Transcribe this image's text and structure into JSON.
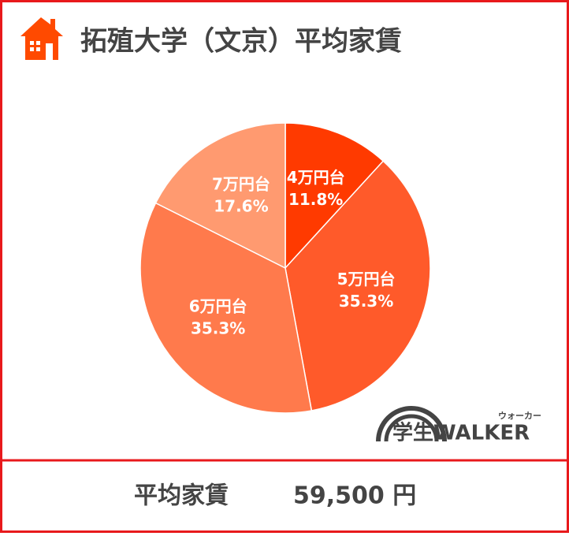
{
  "chart_data": {
    "type": "pie",
    "title": "拓殖大学（文京）平均家賃",
    "categories": [
      "4万円台",
      "5万円台",
      "6万円台",
      "7万円台"
    ],
    "values": [
      11.8,
      35.3,
      35.3,
      17.6
    ],
    "value_labels": [
      "11.8%",
      "35.3%",
      "35.3%",
      "17.6%"
    ],
    "colors": [
      "#ff3a00",
      "#ff5a2a",
      "#ff7a4c",
      "#ff9a70"
    ]
  },
  "footer": {
    "label": "平均家賃",
    "value": "59,500 円"
  },
  "logo": {
    "text": "学生WALKER",
    "ruby": "ウォーカー"
  }
}
